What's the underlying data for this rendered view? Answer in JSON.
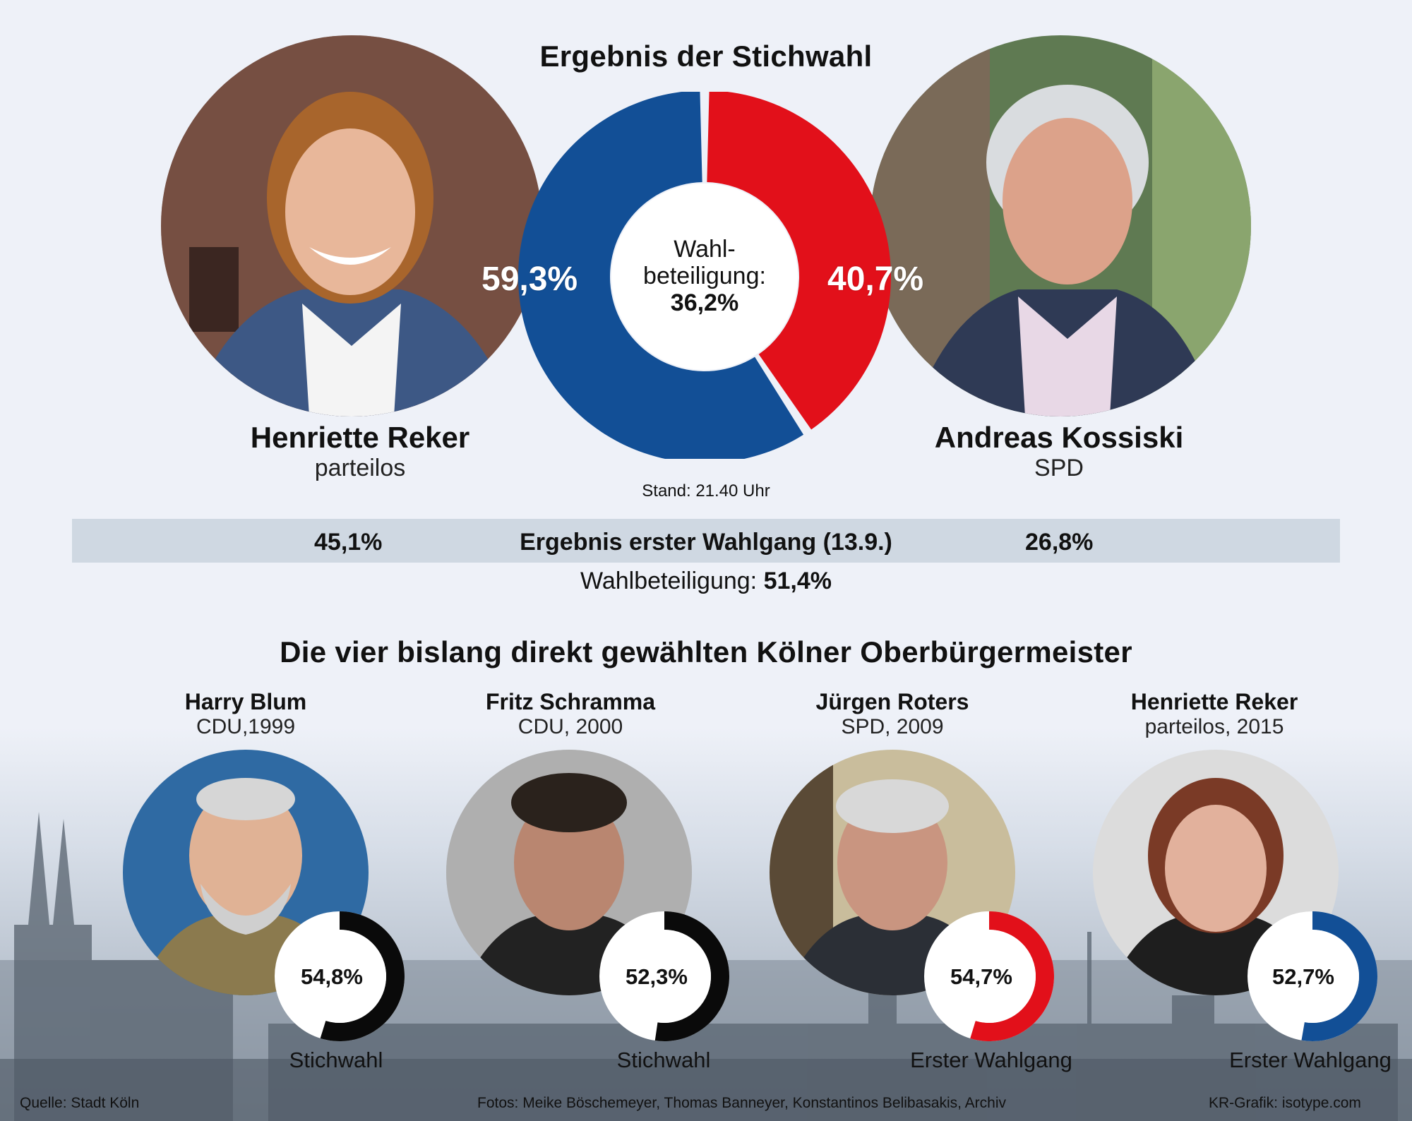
{
  "title": "Ergebnis der Stichwahl",
  "center": {
    "line1": "Wahl-",
    "line2": "beteiligung:",
    "value": "36,2%",
    "stand": "Stand: 21.40 Uhr"
  },
  "candidates": [
    {
      "name": "Henriette Reker",
      "party": "parteilos",
      "pct": "59,3%"
    },
    {
      "name": "Andreas Kossiski",
      "party": "SPD",
      "pct": "40,7%"
    }
  ],
  "first_round": {
    "label": "Ergebnis erster Wahlgang (13.9.)",
    "left": "45,1%",
    "right": "26,8%",
    "turnout_label": "Wahlbeteiligung:",
    "turnout_value": "51,4%"
  },
  "section2_title": "Die vier bislang direkt gewählten Kölner Oberbürgermeister",
  "mayors": [
    {
      "name": "Harry Blum",
      "sub": "CDU,1999",
      "pct": "54,8%",
      "round": "Stichwahl"
    },
    {
      "name": "Fritz Schramma",
      "sub": "CDU, 2000",
      "pct": "52,3%",
      "round": "Stichwahl"
    },
    {
      "name": "Jürgen Roters",
      "sub": "SPD, 2009",
      "pct": "54,7%",
      "round": "Erster Wahlgang"
    },
    {
      "name": "Henriette Reker",
      "sub": "parteilos, 2015",
      "pct": "52,7%",
      "round": "Erster Wahlgang"
    }
  ],
  "footer": {
    "source": "Quelle: Stadt Köln",
    "photos": "Fotos: Meike Böschemeyer, Thomas Banneyer, Konstantinos Belibasakis, Archiv",
    "credit": "KR-Grafik: isotype.com"
  },
  "colors": {
    "blue": "#124f96",
    "red": "#e2101a",
    "black": "#0a0a0a",
    "background": "#eef1f8",
    "bar": "#cfd8e2"
  },
  "chart_data": [
    {
      "type": "pie",
      "title": "Ergebnis der Stichwahl",
      "categories": [
        "Henriette Reker",
        "Andreas Kossiski"
      ],
      "values": [
        59.3,
        40.7
      ],
      "colors": [
        "#124f96",
        "#e2101a"
      ],
      "center_value": 36.2
    },
    {
      "type": "pie",
      "title": "Harry Blum",
      "categories": [
        "Harry Blum"
      ],
      "values": [
        54.8
      ],
      "colors": [
        "#0a0a0a"
      ]
    },
    {
      "type": "pie",
      "title": "Fritz Schramma",
      "categories": [
        "Fritz Schramma"
      ],
      "values": [
        52.3
      ],
      "colors": [
        "#0a0a0a"
      ]
    },
    {
      "type": "pie",
      "title": "Jürgen Roters",
      "categories": [
        "Jürgen Roters"
      ],
      "values": [
        54.7
      ],
      "colors": [
        "#e2101a"
      ]
    },
    {
      "type": "pie",
      "title": "Henriette Reker",
      "categories": [
        "Henriette Reker"
      ],
      "values": [
        52.7
      ],
      "colors": [
        "#124f96"
      ]
    }
  ]
}
